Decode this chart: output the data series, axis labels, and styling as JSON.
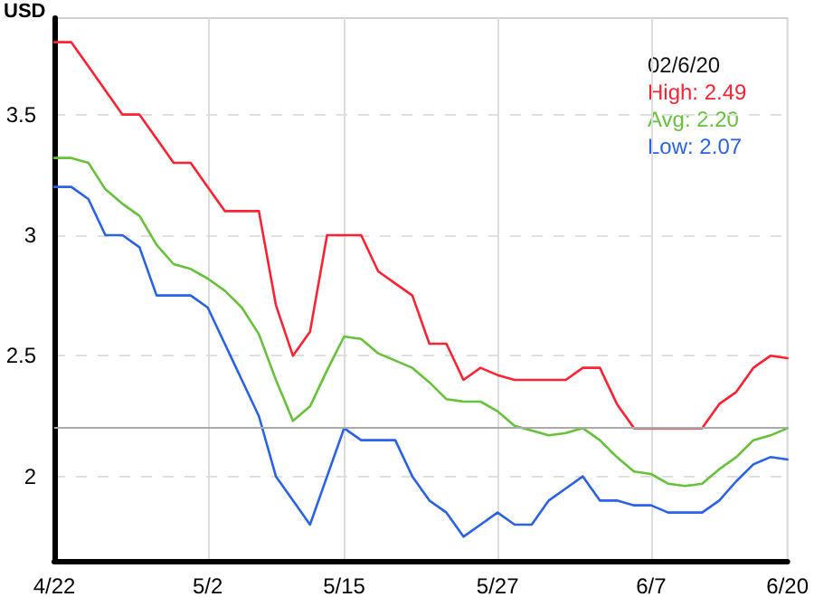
{
  "chart_data": {
    "type": "line",
    "ylabel": "USD",
    "categories": [
      "4/22",
      null,
      null,
      null,
      null,
      null,
      null,
      null,
      null,
      "5/2",
      null,
      null,
      null,
      null,
      null,
      null,
      null,
      "5/15",
      null,
      null,
      null,
      null,
      null,
      null,
      null,
      null,
      "5/27",
      null,
      null,
      null,
      null,
      null,
      null,
      null,
      null,
      "6/7",
      null,
      null,
      null,
      null,
      null,
      null,
      null,
      "6/20"
    ],
    "series": [
      {
        "color": "#ff2233",
        "values": [
          3.8,
          3.8,
          3.7,
          3.6,
          3.5,
          3.5,
          3.4,
          3.3,
          3.3,
          3.2,
          3.1,
          3.1,
          3.1,
          2.71,
          2.5,
          2.6,
          3.0,
          3.0,
          3.0,
          2.85,
          2.8,
          2.75,
          2.55,
          2.55,
          2.4,
          2.45,
          2.42,
          2.4,
          2.4,
          2.4,
          2.4,
          2.45,
          2.45,
          2.3,
          2.2,
          2.2,
          2.2,
          2.2,
          2.2,
          2.3,
          2.35,
          2.45,
          2.5,
          2.49
        ]
      },
      {
        "color": "#66c23a",
        "values": [
          3.32,
          3.32,
          3.3,
          3.19,
          3.13,
          3.08,
          2.96,
          2.88,
          2.86,
          2.82,
          2.77,
          2.7,
          2.59,
          2.4,
          2.23,
          2.29,
          2.44,
          2.58,
          2.57,
          2.51,
          2.48,
          2.45,
          2.39,
          2.32,
          2.31,
          2.31,
          2.27,
          2.21,
          2.19,
          2.17,
          2.18,
          2.2,
          2.15,
          2.08,
          2.02,
          2.01,
          1.97,
          1.96,
          1.97,
          2.03,
          2.08,
          2.15,
          2.17,
          2.2
        ]
      },
      {
        "color": "#2a62e6",
        "values": [
          3.2,
          3.2,
          3.15,
          3.0,
          3.0,
          2.95,
          2.75,
          2.75,
          2.75,
          2.7,
          2.55,
          2.4,
          2.25,
          2.0,
          1.9,
          1.8,
          2.0,
          2.2,
          2.15,
          2.15,
          2.15,
          2.0,
          1.9,
          1.85,
          1.75,
          1.8,
          1.85,
          1.8,
          1.8,
          1.9,
          1.95,
          2.0,
          1.9,
          1.9,
          1.88,
          1.88,
          1.85,
          1.85,
          1.85,
          1.9,
          1.98,
          2.05,
          2.08,
          2.07
        ]
      }
    ],
    "ylim": [
      1.65,
      3.9
    ],
    "yticks": [
      2,
      2.5,
      3,
      3.5
    ],
    "grid": true,
    "marker": "none",
    "line_style": "solid",
    "ref_lines": [
      {
        "axis": "y",
        "value": 2.2,
        "color": "#aaaaaa"
      }
    ],
    "annotations": [
      "02/6/20",
      "High: 2.49",
      "Avg: 2.20",
      "Low: 2.07"
    ]
  }
}
